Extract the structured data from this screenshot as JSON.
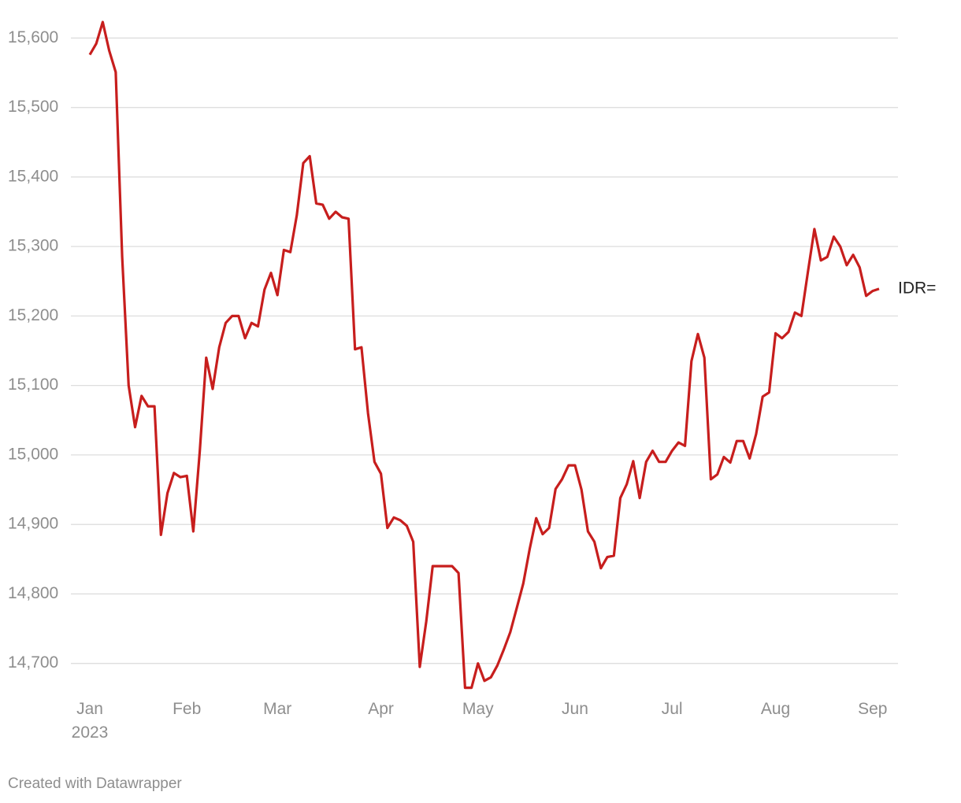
{
  "chart_data": {
    "type": "line",
    "categories": [
      "Jan\n2023",
      null,
      null,
      null,
      null,
      null,
      null,
      null,
      null,
      null,
      null,
      null,
      null,
      null,
      null,
      "Feb",
      null,
      null,
      null,
      null,
      null,
      null,
      null,
      null,
      null,
      null,
      null,
      null,
      null,
      "Mar",
      null,
      null,
      null,
      null,
      null,
      null,
      null,
      null,
      null,
      null,
      null,
      null,
      null,
      null,
      null,
      "Apr",
      null,
      null,
      null,
      null,
      null,
      null,
      null,
      null,
      null,
      null,
      null,
      null,
      null,
      null,
      "May",
      null,
      null,
      null,
      null,
      null,
      null,
      null,
      null,
      null,
      null,
      null,
      null,
      null,
      null,
      "Jun",
      null,
      null,
      null,
      null,
      null,
      null,
      null,
      null,
      null,
      null,
      null,
      null,
      null,
      null,
      "Jul",
      null,
      null,
      null,
      null,
      null,
      null,
      null,
      null,
      null,
      null,
      null,
      null,
      null,
      null,
      null,
      "Aug",
      null,
      null,
      null,
      null,
      null,
      null,
      null,
      null,
      null,
      null,
      null,
      null,
      null,
      null,
      "Sep",
      null
    ],
    "series": [
      {
        "name": "IDR=",
        "color": "#c71e1d",
        "values": [
          15576,
          15592,
          15623,
          15582,
          15551,
          15285,
          15100,
          15040,
          15085,
          15070,
          15070,
          14885,
          14945,
          14974,
          14968,
          14970,
          14890,
          15005,
          15140,
          15095,
          15155,
          15190,
          15200,
          15200,
          15168,
          15190,
          15185,
          15238,
          15262,
          15230,
          15295,
          15292,
          15345,
          15420,
          15430,
          15362,
          15360,
          15340,
          15350,
          15342,
          15340,
          15152,
          15155,
          15060,
          14990,
          14973,
          14895,
          14910,
          14906,
          14898,
          14875,
          14695,
          14760,
          14840,
          14840,
          14840,
          14840,
          14830,
          14665,
          14665,
          14700,
          14675,
          14680,
          14697,
          14720,
          14745,
          14780,
          14815,
          14865,
          14909,
          14886,
          14895,
          14951,
          14965,
          14985,
          14985,
          14950,
          14890,
          14875,
          14837,
          14853,
          14855,
          14938,
          14958,
          14991,
          14938,
          14990,
          15006,
          14990,
          14990,
          15006,
          15018,
          15013,
          15135,
          15174,
          15140,
          14965,
          14972,
          14997,
          14989,
          15020,
          15020,
          14995,
          15030,
          15084,
          15090,
          15175,
          15168,
          15177,
          15205,
          15200,
          15263,
          15325,
          15280,
          15285,
          15314,
          15300,
          15273,
          15288,
          15270,
          15229,
          15236,
          15239
        ]
      }
    ],
    "ylim": [
      14660,
      15640
    ],
    "yticks": [
      {
        "value": 14700,
        "label": "14,700"
      },
      {
        "value": 14800,
        "label": "14,800"
      },
      {
        "value": 14900,
        "label": "14,900"
      },
      {
        "value": 15000,
        "label": "15,000"
      },
      {
        "value": 15100,
        "label": "15,100"
      },
      {
        "value": 15200,
        "label": "15,200"
      },
      {
        "value": 15300,
        "label": "15,300"
      },
      {
        "value": 15400,
        "label": "15,400"
      },
      {
        "value": 15500,
        "label": "15,500"
      },
      {
        "value": 15600,
        "label": "15,600"
      }
    ],
    "grid": true,
    "credit": "Created with Datawrapper"
  }
}
